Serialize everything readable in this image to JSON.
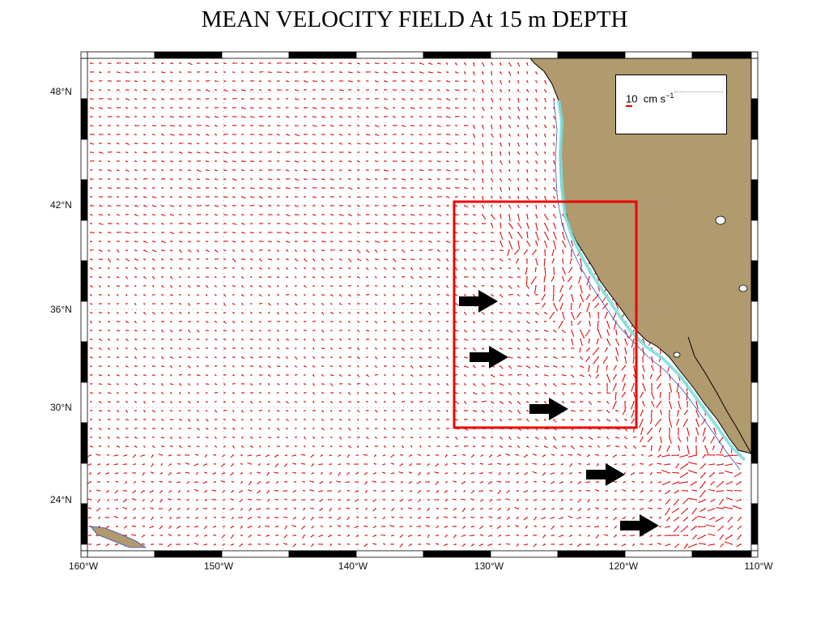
{
  "title": "MEAN VELOCITY FIELD At 15 m DEPTH",
  "lat_labels": [
    "48°N",
    "42°N",
    "36°N",
    "30°N",
    "24°N"
  ],
  "lon_labels": [
    "160°W",
    "150°W",
    "140°W",
    "130°W",
    "120°W",
    "110°W"
  ],
  "scale": {
    "value": "10",
    "unit": "cm s",
    "exponent": "−1"
  },
  "colors": {
    "land": "#b09a6e",
    "vectors": "#e01010",
    "highlight_box": "#ee0000",
    "shelf": "#7fe0e0",
    "arrows": "#000000"
  },
  "annotations": {
    "highlight_box": "study region",
    "arrow_count": 5,
    "arrow_icon": "right-arrow-icon"
  }
}
